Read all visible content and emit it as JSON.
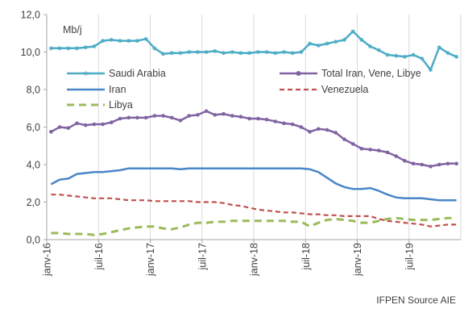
{
  "chart_data": {
    "type": "line",
    "title": "",
    "unit_label": "Mb/j",
    "source": "IFPEN Source AIE",
    "ylim": [
      0,
      12
    ],
    "y_ticks": [
      "0,0",
      "2,0",
      "4,0",
      "6,0",
      "8,0",
      "10,0",
      "12,0"
    ],
    "y_tick_values": [
      0,
      2,
      4,
      6,
      8,
      10,
      12
    ],
    "x_tick_labels": [
      "janv-16",
      "juil-16",
      "janv-17",
      "juil-17",
      "janv-18",
      "juil-18",
      "janv-19",
      "juil-19"
    ],
    "x_tick_index": [
      0,
      6,
      12,
      18,
      24,
      30,
      36,
      42
    ],
    "n_points": 48,
    "grid": "vertical",
    "legend": "inside-top",
    "series": [
      {
        "name": "Saudi Arabia",
        "color": "#4bacc6",
        "style": "solid-star",
        "values": [
          10.2,
          10.2,
          10.2,
          10.2,
          10.25,
          10.3,
          10.6,
          10.65,
          10.6,
          10.6,
          10.6,
          10.7,
          10.2,
          9.9,
          9.95,
          9.95,
          10.0,
          10.0,
          10.0,
          10.05,
          9.95,
          10.0,
          9.95,
          9.95,
          10.0,
          10.0,
          9.95,
          10.0,
          9.95,
          10.0,
          10.45,
          10.35,
          10.45,
          10.55,
          10.65,
          11.1,
          10.65,
          10.3,
          10.1,
          9.85,
          9.8,
          9.75,
          9.85,
          9.65,
          9.05,
          10.25,
          9.95,
          9.75
        ]
      },
      {
        "name": "Total Iran, Vene, Libye",
        "color": "#8064a2",
        "style": "solid-dot",
        "values": [
          5.75,
          6.0,
          5.95,
          6.2,
          6.1,
          6.15,
          6.15,
          6.25,
          6.45,
          6.5,
          6.5,
          6.5,
          6.6,
          6.6,
          6.5,
          6.35,
          6.6,
          6.65,
          6.85,
          6.65,
          6.7,
          6.6,
          6.55,
          6.45,
          6.45,
          6.4,
          6.3,
          6.2,
          6.15,
          6.0,
          5.75,
          5.9,
          5.85,
          5.7,
          5.35,
          5.1,
          4.85,
          4.8,
          4.75,
          4.65,
          4.45,
          4.2,
          4.05,
          4.0,
          3.9,
          4.0,
          4.05,
          4.05
        ]
      },
      {
        "name": "Iran",
        "color": "#4a86c8",
        "style": "solid",
        "values": [
          2.95,
          3.2,
          3.25,
          3.5,
          3.55,
          3.6,
          3.6,
          3.65,
          3.7,
          3.8,
          3.8,
          3.8,
          3.8,
          3.8,
          3.8,
          3.75,
          3.8,
          3.8,
          3.8,
          3.8,
          3.8,
          3.8,
          3.8,
          3.8,
          3.8,
          3.8,
          3.8,
          3.8,
          3.8,
          3.8,
          3.75,
          3.6,
          3.3,
          3.0,
          2.8,
          2.7,
          2.7,
          2.75,
          2.6,
          2.4,
          2.25,
          2.2,
          2.2,
          2.2,
          2.15,
          2.1,
          2.1,
          2.1
        ]
      },
      {
        "name": "Venezuela",
        "color": "#c0504d",
        "style": "dashed",
        "values": [
          2.4,
          2.4,
          2.35,
          2.3,
          2.25,
          2.2,
          2.2,
          2.2,
          2.15,
          2.1,
          2.1,
          2.1,
          2.05,
          2.05,
          2.05,
          2.05,
          2.05,
          2.0,
          2.0,
          2.0,
          1.95,
          1.85,
          1.8,
          1.7,
          1.6,
          1.55,
          1.5,
          1.45,
          1.45,
          1.4,
          1.35,
          1.35,
          1.3,
          1.3,
          1.25,
          1.25,
          1.25,
          1.25,
          1.1,
          1.0,
          0.95,
          0.9,
          0.85,
          0.8,
          0.7,
          0.75,
          0.8,
          0.8
        ]
      },
      {
        "name": "Libya",
        "color": "#9bbb59",
        "style": "dashed-thick",
        "values": [
          0.35,
          0.35,
          0.3,
          0.3,
          0.3,
          0.25,
          0.3,
          0.4,
          0.5,
          0.6,
          0.65,
          0.7,
          0.7,
          0.6,
          0.55,
          0.65,
          0.8,
          0.9,
          0.9,
          0.95,
          0.95,
          1.0,
          1.0,
          1.0,
          1.0,
          1.0,
          1.0,
          1.0,
          0.95,
          0.95,
          0.7,
          0.9,
          1.05,
          1.1,
          1.05,
          1.0,
          0.9,
          0.9,
          1.0,
          1.1,
          1.15,
          1.1,
          1.05,
          1.05,
          1.05,
          1.1,
          1.15,
          1.15
        ]
      }
    ]
  }
}
